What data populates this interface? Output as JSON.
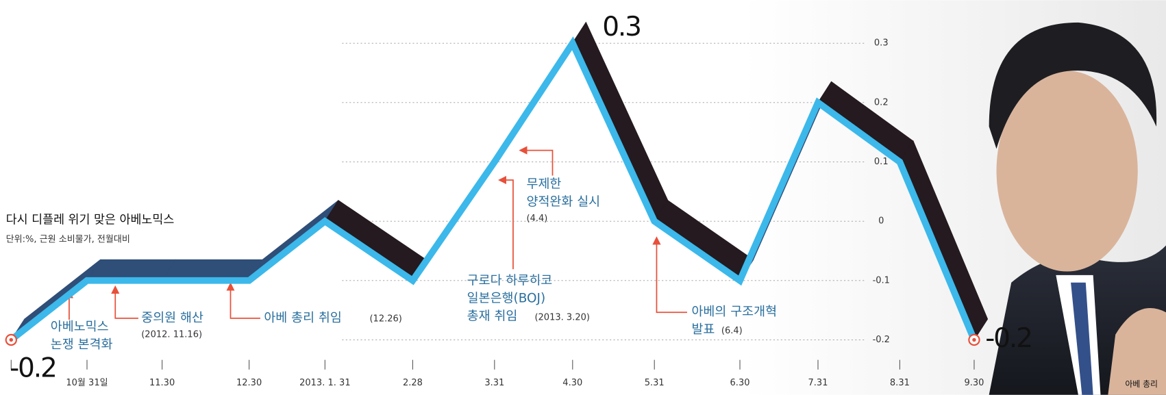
{
  "chart_data": {
    "type": "line",
    "title": "다시 디플레 위기 맞은 아베노믹스",
    "subtitle": "단위:%, 근원 소비물가, 전월대비",
    "categories": [
      null,
      "10월 31일",
      "11.30",
      "12.30",
      "2013. 1. 31",
      "2.28",
      "3.31",
      "4.30",
      "5.31",
      "6.30",
      "7.31",
      "8.31",
      "9.30"
    ],
    "series": [
      {
        "name": "근원 소비물가",
        "color": "#3cb8ea",
        "values": [
          -0.2,
          -0.1,
          -0.1,
          -0.1,
          0,
          -0.1,
          0.1,
          0.3,
          0,
          -0.1,
          0.2,
          0.1,
          -0.2
        ]
      }
    ],
    "ylim": [
      -0.25,
      0.35
    ],
    "yticks": [
      0.3,
      0.2,
      0.1,
      0,
      -0.1,
      -0.2
    ],
    "grid": true,
    "annotations": [
      {
        "text": [
          "아베노믹스",
          "논쟁 본격화"
        ]
      },
      {
        "text": [
          "중의원 해산"
        ],
        "date": "(2012. 11.16)"
      },
      {
        "text": [
          "아베 총리 취임"
        ],
        "date": "(12.26)"
      },
      {
        "text": [
          "구로다 하루히코",
          "일본은행(BOJ)",
          "총재 취임"
        ],
        "date": "(2013. 3.20)"
      },
      {
        "text": [
          "무제한",
          "양적완화 실시"
        ],
        "date": "(4.4)"
      },
      {
        "text": [
          "아베의 구조개혁",
          "발표"
        ],
        "date": "(6.4)"
      }
    ]
  },
  "photo_caption": "아베 총리"
}
